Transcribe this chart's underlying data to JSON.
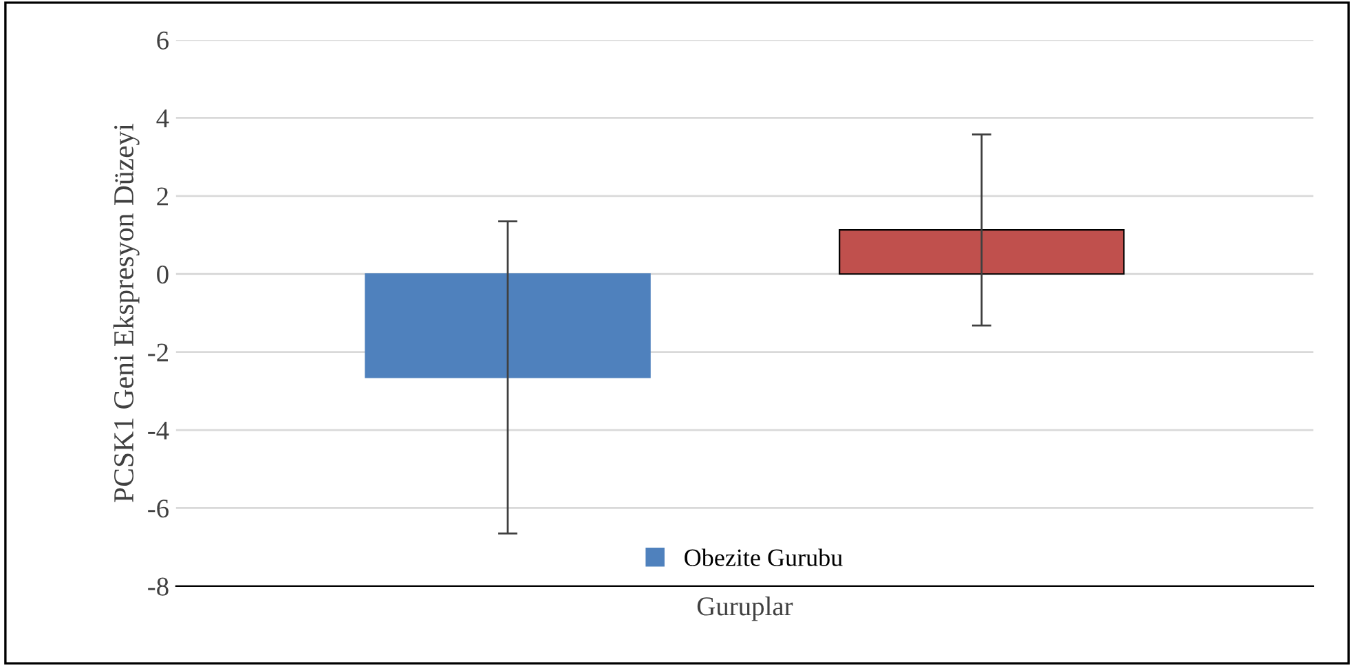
{
  "chart_data": {
    "type": "bar",
    "xlabel": "Guruplar",
    "ylabel": "PCSK1 Geni Ekspresyon Düzeyi",
    "categories": [
      null,
      null
    ],
    "series": [
      {
        "name": "Obezite Gurubu",
        "color": "#4f81bd",
        "values": [
          -2.65,
          null
        ],
        "errors": [
          4.0,
          null
        ]
      },
      {
        "color": "#c0504d",
        "values": [
          null,
          1.13
        ],
        "errors": [
          null,
          2.45
        ]
      }
    ],
    "ylim": [
      -8,
      6
    ],
    "yticks": [
      -8,
      -6,
      -4,
      -2,
      0,
      2,
      4,
      6
    ],
    "grid": "y",
    "legend": "bottom"
  }
}
